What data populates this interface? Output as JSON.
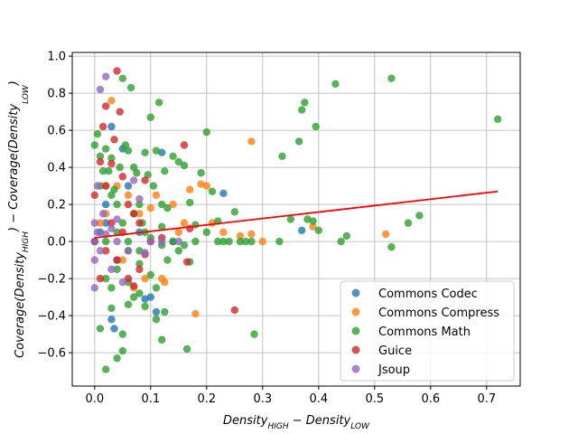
{
  "chart_data": {
    "type": "scatter",
    "xlabel": "Density_HIGH − Density_LOW",
    "ylabel": "Coverage(Density_HIGH) − Coverage(Density_LOW)",
    "xlim": [
      -0.04,
      0.76
    ],
    "ylim": [
      -0.78,
      1.02
    ],
    "x_ticks": [
      0.0,
      0.1,
      0.2,
      0.3,
      0.4,
      0.5,
      0.6,
      0.7
    ],
    "x_tick_labels": [
      "0.0",
      "0.1",
      "0.2",
      "0.3",
      "0.4",
      "0.5",
      "0.6",
      "0.7"
    ],
    "y_ticks": [
      -0.6,
      -0.4,
      -0.2,
      0.0,
      0.2,
      0.4,
      0.6,
      0.8,
      1.0
    ],
    "y_tick_labels": [
      "−0.6",
      "−0.4",
      "−0.2",
      "0.0",
      "0.2",
      "0.4",
      "0.6",
      "0.8",
      "1.0"
    ],
    "grid": true,
    "legend_position": "bottom-right",
    "trend_line": {
      "color": "#ff0000",
      "x": [
        0.0,
        0.72
      ],
      "y": [
        0.02,
        0.27
      ]
    },
    "series": [
      {
        "name": "Commons Codec",
        "color": "#1f77b4",
        "points": [
          [
            0.0,
            0.0
          ],
          [
            0.01,
            0.05
          ],
          [
            0.02,
            0.1
          ],
          [
            0.03,
            -0.42
          ],
          [
            0.035,
            -0.47
          ],
          [
            0.05,
            0.5
          ],
          [
            0.03,
            0.62
          ],
          [
            0.1,
            -0.3
          ],
          [
            0.09,
            -0.31
          ],
          [
            0.11,
            -0.38
          ],
          [
            0.12,
            0.48
          ],
          [
            0.14,
            0.0
          ],
          [
            0.23,
            0.26
          ],
          [
            0.37,
            0.06
          ],
          [
            0.06,
            0.3
          ],
          [
            0.04,
            -0.1
          ],
          [
            0.02,
            0.2
          ],
          [
            0.08,
            0.05
          ]
        ]
      },
      {
        "name": "Commons Compress",
        "color": "#ff7f0e",
        "points": [
          [
            0.0,
            0.0
          ],
          [
            0.01,
            0.1
          ],
          [
            0.02,
            0.3
          ],
          [
            0.03,
            0.76
          ],
          [
            0.04,
            0.3
          ],
          [
            0.06,
            0.25
          ],
          [
            0.08,
            0.15
          ],
          [
            0.1,
            0.18
          ],
          [
            0.11,
            0.25
          ],
          [
            0.12,
            -0.2
          ],
          [
            0.125,
            -0.22
          ],
          [
            0.14,
            0.2
          ],
          [
            0.16,
            0.1
          ],
          [
            0.17,
            0.28
          ],
          [
            0.18,
            -0.39
          ],
          [
            0.19,
            0.31
          ],
          [
            0.2,
            0.3
          ],
          [
            0.21,
            0.1
          ],
          [
            0.23,
            0.05
          ],
          [
            0.26,
            0.03
          ],
          [
            0.28,
            0.04
          ],
          [
            0.3,
            0.0
          ],
          [
            0.28,
            0.54
          ],
          [
            0.39,
            0.08
          ],
          [
            0.52,
            0.04
          ],
          [
            0.09,
            -0.2
          ],
          [
            0.07,
            -0.25
          ],
          [
            0.05,
            -0.1
          ],
          [
            0.15,
            0.05
          ],
          [
            0.02,
            0.15
          ]
        ]
      },
      {
        "name": "Commons Math",
        "color": "#2ca02c",
        "points": [
          [
            0.0,
            0.0
          ],
          [
            0.0,
            0.52
          ],
          [
            0.005,
            0.58
          ],
          [
            0.01,
            0.46
          ],
          [
            0.015,
            0.38
          ],
          [
            0.02,
            0.5
          ],
          [
            0.025,
            0.38
          ],
          [
            0.03,
            0.45
          ],
          [
            0.035,
            0.28
          ],
          [
            0.04,
            0.2
          ],
          [
            0.045,
            0.4
          ],
          [
            0.05,
            0.88
          ],
          [
            0.055,
            0.52
          ],
          [
            0.06,
            0.49
          ],
          [
            0.065,
            0.83
          ],
          [
            0.07,
            0.4
          ],
          [
            0.075,
            0.37
          ],
          [
            0.08,
            0.2
          ],
          [
            0.085,
            0.1
          ],
          [
            0.09,
            0.48
          ],
          [
            0.095,
            0.36
          ],
          [
            0.1,
            0.67
          ],
          [
            0.105,
            0.3
          ],
          [
            0.11,
            0.49
          ],
          [
            0.115,
            0.75
          ],
          [
            0.12,
            0.2
          ],
          [
            0.125,
            0.38
          ],
          [
            0.13,
            0.18
          ],
          [
            0.14,
            0.46
          ],
          [
            0.15,
            0.43
          ],
          [
            0.16,
            0.41
          ],
          [
            0.17,
            0.21
          ],
          [
            0.18,
            0.09
          ],
          [
            0.19,
            0.37
          ],
          [
            0.2,
            0.59
          ],
          [
            0.21,
            0.27
          ],
          [
            0.22,
            0.11
          ],
          [
            0.23,
            0.0
          ],
          [
            0.24,
            0.0
          ],
          [
            0.25,
            0.16
          ],
          [
            0.27,
            0.0
          ],
          [
            0.28,
            0.0
          ],
          [
            0.285,
            -0.5
          ],
          [
            0.33,
            0.0
          ],
          [
            0.335,
            0.46
          ],
          [
            0.35,
            0.12
          ],
          [
            0.365,
            0.54
          ],
          [
            0.37,
            0.71
          ],
          [
            0.375,
            0.75
          ],
          [
            0.38,
            0.12
          ],
          [
            0.39,
            0.11
          ],
          [
            0.395,
            0.62
          ],
          [
            0.4,
            0.06
          ],
          [
            0.43,
            0.85
          ],
          [
            0.44,
            0.0
          ],
          [
            0.45,
            0.03
          ],
          [
            0.53,
            0.88
          ],
          [
            0.53,
            -0.03
          ],
          [
            0.56,
            0.1
          ],
          [
            0.58,
            0.14
          ],
          [
            0.72,
            0.66
          ],
          [
            0.01,
            -0.47
          ],
          [
            0.02,
            -0.69
          ],
          [
            0.03,
            -0.36
          ],
          [
            0.04,
            -0.63
          ],
          [
            0.05,
            -0.59
          ],
          [
            0.05,
            -0.5
          ],
          [
            0.06,
            -0.34
          ],
          [
            0.07,
            -0.3
          ],
          [
            0.09,
            -0.35
          ],
          [
            0.11,
            -0.42
          ],
          [
            0.12,
            -0.53
          ],
          [
            0.125,
            -0.38
          ],
          [
            0.165,
            -0.58
          ],
          [
            0.02,
            -0.2
          ],
          [
            0.04,
            -0.15
          ],
          [
            0.06,
            -0.05
          ],
          [
            0.08,
            -0.12
          ],
          [
            0.1,
            -0.18
          ],
          [
            0.13,
            -0.1
          ],
          [
            0.15,
            -0.05
          ],
          [
            0.17,
            -0.11
          ],
          [
            0.01,
            0.3
          ],
          [
            0.03,
            0.25
          ],
          [
            0.05,
            0.1
          ],
          [
            0.07,
            0.15
          ],
          [
            0.09,
            0.05
          ],
          [
            0.12,
            0.08
          ],
          [
            0.14,
            0.0
          ],
          [
            0.16,
            -0.02
          ],
          [
            0.18,
            0.0
          ],
          [
            0.2,
            0.05
          ],
          [
            0.22,
            0.0
          ],
          [
            0.26,
            0.0
          ],
          [
            0.03,
            -0.25
          ],
          [
            0.06,
            -0.22
          ],
          [
            0.08,
            -0.28
          ],
          [
            0.11,
            -0.25
          ],
          [
            0.02,
            0.0
          ],
          [
            0.04,
            0.05
          ],
          [
            0.06,
            0.0
          ],
          [
            0.08,
            -0.05
          ],
          [
            0.1,
            0.02
          ],
          [
            0.12,
            -0.02
          ]
        ]
      },
      {
        "name": "Guice",
        "color": "#d62728",
        "points": [
          [
            0.0,
            0.0
          ],
          [
            0.0,
            0.25
          ],
          [
            0.01,
            0.43
          ],
          [
            0.015,
            0.62
          ],
          [
            0.02,
            0.73
          ],
          [
            0.03,
            0.42
          ],
          [
            0.035,
            0.55
          ],
          [
            0.04,
            0.92
          ],
          [
            0.045,
            0.7
          ],
          [
            0.05,
            0.35
          ],
          [
            0.06,
            0.2
          ],
          [
            0.07,
            0.15
          ],
          [
            0.08,
            0.1
          ],
          [
            0.09,
            0.33
          ],
          [
            0.1,
            0.0
          ],
          [
            0.16,
            0.52
          ],
          [
            0.165,
            -0.11
          ],
          [
            0.17,
            0.07
          ],
          [
            0.25,
            -0.37
          ],
          [
            0.02,
            -0.05
          ],
          [
            0.04,
            -0.1
          ],
          [
            0.06,
            -0.2
          ],
          [
            0.07,
            -0.24
          ],
          [
            0.09,
            -0.07
          ],
          [
            0.03,
            0.1
          ],
          [
            0.05,
            0.05
          ],
          [
            0.01,
            -0.2
          ],
          [
            0.08,
            -0.15
          ],
          [
            0.12,
            0.02
          ],
          [
            0.02,
            0.3
          ]
        ]
      },
      {
        "name": "Jsoup",
        "color": "#9467bd",
        "points": [
          [
            0.0,
            0.0
          ],
          [
            0.0,
            0.1
          ],
          [
            0.0,
            -0.1
          ],
          [
            0.005,
            0.3
          ],
          [
            0.01,
            0.82
          ],
          [
            0.02,
            0.89
          ],
          [
            0.02,
            0.04
          ],
          [
            0.03,
            0.07
          ],
          [
            0.04,
            0.12
          ],
          [
            0.05,
            -0.22
          ],
          [
            0.06,
            -0.05
          ],
          [
            0.07,
            0.33
          ],
          [
            0.08,
            0.23
          ],
          [
            0.09,
            -0.06
          ],
          [
            0.1,
            0.0
          ],
          [
            0.12,
            0.0
          ],
          [
            0.15,
            0.0
          ],
          [
            0.0,
            -0.25
          ],
          [
            0.005,
            0.05
          ],
          [
            0.01,
            -0.05
          ],
          [
            0.015,
            0.15
          ],
          [
            0.03,
            -0.15
          ],
          [
            0.04,
            0.0
          ]
        ]
      }
    ]
  }
}
